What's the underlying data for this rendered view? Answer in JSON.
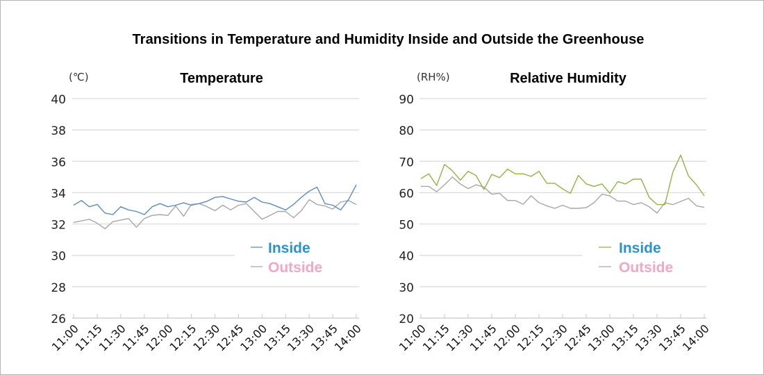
{
  "title": "Transitions in Temperature and Humidity Inside and Outside the Greenhouse",
  "colors": {
    "grid": "#d9d9d9",
    "axis": "#c8c8c8",
    "legend_inside_text": "#2b93c6",
    "legend_outside_text": "#f2a7c3"
  },
  "chart_data": [
    {
      "type": "line",
      "id": "temperature",
      "title": "Temperature",
      "ylabel": "(℃)",
      "xlabel": "",
      "ylim": [
        26,
        40
      ],
      "yticks": [
        40,
        38,
        36,
        34,
        32,
        30,
        28,
        26
      ],
      "grid": true,
      "legend_placement": "lower-right",
      "xtick_labels": [
        "11:00",
        "11:15",
        "11:30",
        "11:45",
        "12:00",
        "12:15",
        "12:30",
        "12:45",
        "13:00",
        "13:15",
        "13:30",
        "13:45",
        "14:00"
      ],
      "x_interval_minutes": 5,
      "x": [
        "11:00",
        "11:05",
        "11:10",
        "11:15",
        "11:20",
        "11:25",
        "11:30",
        "11:35",
        "11:40",
        "11:45",
        "11:50",
        "11:55",
        "12:00",
        "12:05",
        "12:10",
        "12:15",
        "12:20",
        "12:25",
        "12:30",
        "12:35",
        "12:40",
        "12:45",
        "12:50",
        "12:55",
        "13:00",
        "13:05",
        "13:10",
        "13:15",
        "13:20",
        "13:25",
        "13:30",
        "13:35",
        "13:40",
        "13:45",
        "13:50",
        "13:55",
        "14:00"
      ],
      "series": [
        {
          "name": "Inside",
          "color": "#5b8db8",
          "values": [
            33.2,
            33.5,
            33.1,
            33.25,
            32.7,
            32.6,
            33.1,
            32.9,
            32.8,
            32.6,
            33.1,
            33.3,
            33.1,
            33.2,
            33.35,
            33.2,
            33.3,
            33.45,
            33.7,
            33.75,
            33.6,
            33.45,
            33.4,
            33.7,
            33.4,
            33.3,
            33.1,
            32.9,
            33.25,
            33.7,
            34.1,
            34.35,
            33.3,
            33.2,
            32.9,
            33.55,
            34.5
          ]
        },
        {
          "name": "Outside",
          "color": "#a6a6a6",
          "values": [
            32.1,
            32.2,
            32.3,
            32.05,
            31.7,
            32.15,
            32.25,
            32.35,
            31.8,
            32.35,
            32.55,
            32.6,
            32.55,
            33.15,
            32.5,
            33.25,
            33.3,
            33.1,
            32.85,
            33.2,
            32.9,
            33.2,
            33.3,
            32.8,
            32.3,
            32.55,
            32.8,
            32.8,
            32.4,
            32.85,
            33.55,
            33.25,
            33.15,
            32.95,
            33.4,
            33.5,
            33.25
          ]
        }
      ]
    },
    {
      "type": "line",
      "id": "humidity",
      "title": "Relative Humidity",
      "ylabel": "(RH%)",
      "xlabel": "",
      "ylim": [
        20,
        90
      ],
      "yticks": [
        90,
        80,
        70,
        60,
        50,
        40,
        30,
        20
      ],
      "grid": true,
      "legend_placement": "lower-right",
      "xtick_labels": [
        "11:00",
        "11:15",
        "11:30",
        "11:45",
        "12:00",
        "12:15",
        "12:30",
        "12:45",
        "13:00",
        "13:15",
        "13:30",
        "13:45",
        "14:00"
      ],
      "x_interval_minutes": 5,
      "x": [
        "11:00",
        "11:05",
        "11:10",
        "11:15",
        "11:20",
        "11:25",
        "11:30",
        "11:35",
        "11:40",
        "11:45",
        "11:50",
        "11:55",
        "12:00",
        "12:05",
        "12:10",
        "12:15",
        "12:20",
        "12:25",
        "12:30",
        "12:35",
        "12:40",
        "12:45",
        "12:50",
        "12:55",
        "13:00",
        "13:05",
        "13:10",
        "13:15",
        "13:20",
        "13:25",
        "13:30",
        "13:35",
        "13:40",
        "13:45",
        "13:50",
        "13:55",
        "14:00"
      ],
      "series": [
        {
          "name": "Inside",
          "color": "#8db545",
          "values": [
            64.5,
            66,
            62.3,
            69,
            67,
            64,
            66.8,
            65.5,
            61,
            65.8,
            64.8,
            67.5,
            66,
            66,
            65.2,
            66.8,
            63,
            63,
            61.2,
            59.8,
            65.5,
            62.8,
            62,
            62.8,
            59.8,
            63.5,
            62.8,
            64.3,
            64.3,
            58.5,
            56.2,
            56.2,
            66.5,
            72,
            65.3,
            62.5,
            59
          ]
        },
        {
          "name": "Outside",
          "color": "#a6a6a6",
          "values": [
            62,
            62,
            60.3,
            62.5,
            65,
            62.8,
            61.3,
            62.5,
            61.8,
            59.5,
            59.8,
            57.5,
            57.5,
            56.3,
            59,
            56.8,
            55.8,
            55,
            56,
            55,
            55,
            55.2,
            56.8,
            59.5,
            59,
            57.3,
            57.3,
            56.2,
            56.8,
            55.5,
            53.5,
            56.8,
            56.2,
            57.2,
            58.2,
            55.8,
            55.3
          ]
        }
      ]
    }
  ]
}
